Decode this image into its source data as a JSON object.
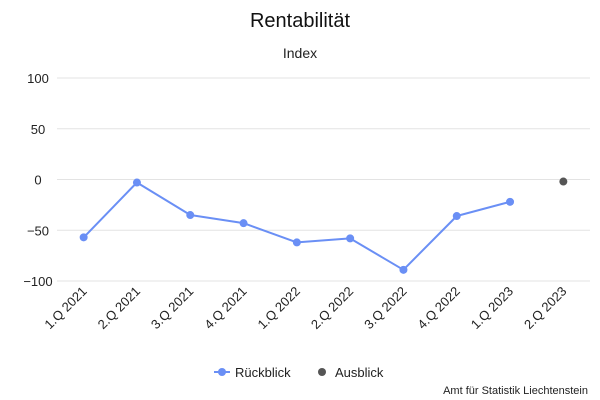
{
  "chart_data": {
    "type": "line",
    "title": "Rentabilität",
    "subtitle": "Index",
    "categories": [
      "1.Q 2021",
      "2.Q 2021",
      "3.Q 2021",
      "4.Q 2021",
      "1.Q 2022",
      "2.Q 2022",
      "3.Q 2022",
      "4.Q 2022",
      "1.Q 2023",
      "2.Q 2023"
    ],
    "yticks": [
      100,
      50,
      0,
      -50,
      -100
    ],
    "ylim": [
      -100,
      100
    ],
    "grid": true,
    "legend_position": "bottom-center",
    "series": [
      {
        "name": "Rückblick",
        "color": "#6a8ff5",
        "style": "line-with-markers",
        "values": [
          -57,
          -3,
          -35,
          -43,
          -62,
          -58,
          -89,
          -36,
          -22,
          null
        ]
      },
      {
        "name": "Ausblick",
        "color": "#555555",
        "style": "markers",
        "values": [
          null,
          null,
          null,
          null,
          null,
          null,
          null,
          null,
          null,
          -2
        ]
      }
    ],
    "credit": "Amt für Statistik Liechtenstein"
  }
}
